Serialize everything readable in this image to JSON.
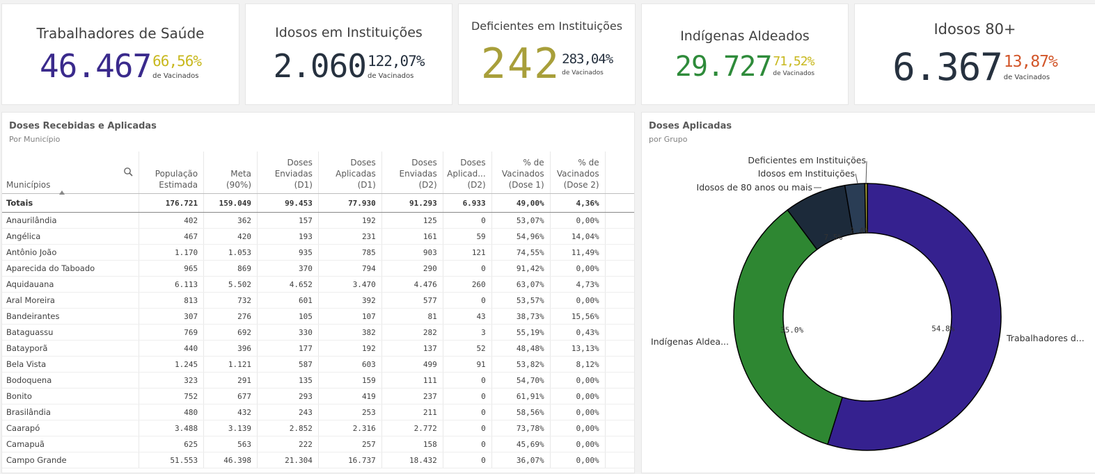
{
  "kpis": [
    {
      "title": "Trabalhadores de Saúde",
      "value": "46.467",
      "pct": "66,56%",
      "sub": "de Vacinados",
      "value_color": "#3a2a8c",
      "pct_color": "#c8b81e"
    },
    {
      "title": "Idosos em Instituições",
      "value": "2.060",
      "pct": "122,07%",
      "sub": "de Vacinados",
      "value_color": "#26313f",
      "pct_color": "#26313f"
    },
    {
      "title": "Deficientes em Instituições",
      "value": "242",
      "pct": "283,04%",
      "sub": "de Vacinados",
      "value_color": "#a89f3a",
      "pct_color": "#26313f"
    },
    {
      "title": "Indígenas Aldeados",
      "value": "29.727",
      "pct": "71,52%",
      "sub": "de Vacinados",
      "value_color": "#2e8b3a",
      "pct_color": "#c8b81e"
    },
    {
      "title": "Idosos 80+",
      "value": "6.367",
      "pct": "13,87%",
      "sub": "de Vacinados",
      "value_color": "#26313f",
      "pct_color": "#d2562a"
    }
  ],
  "table_panel": {
    "title": "Doses Recebidas e Aplicadas",
    "subtitle": "Por Município",
    "columns": [
      [
        "Municípios"
      ],
      [
        "População",
        "Estimada"
      ],
      [
        "Meta",
        "(90%)"
      ],
      [
        "Doses",
        "Enviadas",
        "(D1)"
      ],
      [
        "Doses",
        "Aplicadas",
        "(D1)"
      ],
      [
        "Doses",
        "Enviadas",
        "(D2)"
      ],
      [
        "Doses",
        "Aplicad...",
        "(D2)"
      ],
      [
        "% de",
        "Vacinados",
        "(Dose 1)"
      ],
      [
        "% de",
        "Vacinados",
        "(Dose 2)"
      ]
    ],
    "totals": [
      "Totais",
      "176.721",
      "159.049",
      "99.453",
      "77.930",
      "91.293",
      "6.933",
      "49,00%",
      "4,36%"
    ],
    "rows": [
      [
        "Anaurilândia",
        "402",
        "362",
        "157",
        "192",
        "125",
        "0",
        "53,07%",
        "0,00%"
      ],
      [
        "Angélica",
        "467",
        "420",
        "193",
        "231",
        "161",
        "59",
        "54,96%",
        "14,04%"
      ],
      [
        "Antônio João",
        "1.170",
        "1.053",
        "935",
        "785",
        "903",
        "121",
        "74,55%",
        "11,49%"
      ],
      [
        "Aparecida do Taboado",
        "965",
        "869",
        "370",
        "794",
        "290",
        "0",
        "91,42%",
        "0,00%"
      ],
      [
        "Aquidauana",
        "6.113",
        "5.502",
        "4.652",
        "3.470",
        "4.476",
        "260",
        "63,07%",
        "4,73%"
      ],
      [
        "Aral Moreira",
        "813",
        "732",
        "601",
        "392",
        "577",
        "0",
        "53,57%",
        "0,00%"
      ],
      [
        "Bandeirantes",
        "307",
        "276",
        "105",
        "107",
        "81",
        "43",
        "38,73%",
        "15,56%"
      ],
      [
        "Bataguassu",
        "769",
        "692",
        "330",
        "382",
        "282",
        "3",
        "55,19%",
        "0,43%"
      ],
      [
        "Batayporã",
        "440",
        "396",
        "177",
        "192",
        "137",
        "52",
        "48,48%",
        "13,13%"
      ],
      [
        "Bela Vista",
        "1.245",
        "1.121",
        "587",
        "603",
        "499",
        "91",
        "53,82%",
        "8,12%"
      ],
      [
        "Bodoquena",
        "323",
        "291",
        "135",
        "159",
        "111",
        "0",
        "54,70%",
        "0,00%"
      ],
      [
        "Bonito",
        "752",
        "677",
        "293",
        "419",
        "237",
        "0",
        "61,91%",
        "0,00%"
      ],
      [
        "Brasilândia",
        "480",
        "432",
        "243",
        "253",
        "211",
        "0",
        "58,56%",
        "0,00%"
      ],
      [
        "Caarapó",
        "3.488",
        "3.139",
        "2.852",
        "2.316",
        "2.772",
        "0",
        "73,78%",
        "0,00%"
      ],
      [
        "Camapuã",
        "625",
        "563",
        "222",
        "257",
        "158",
        "0",
        "45,69%",
        "0,00%"
      ],
      [
        "Campo Grande",
        "51.553",
        "46.398",
        "21.304",
        "16.737",
        "18.432",
        "0",
        "36,07%",
        "0,00%"
      ]
    ]
  },
  "chart_panel": {
    "title": "Doses Aplicadas",
    "subtitle": "por Grupo"
  },
  "chart_data": {
    "type": "pie",
    "donut": true,
    "slices": [
      {
        "label": "Trabalhadores d...",
        "value": 54.8,
        "pct_label": "54.8%",
        "color": "#35218f"
      },
      {
        "label": "Indígenas Aldea...",
        "value": 35.0,
        "pct_label": "35.0%",
        "color": "#2e8732"
      },
      {
        "label": "Idosos de 80 anos ou mais",
        "value": 7.5,
        "pct_label": "7.5%",
        "color": "#1c2a3a"
      },
      {
        "label": "Idosos em Instituições",
        "value": 2.4,
        "pct_label": "2.4%",
        "color": "#2a3d55"
      },
      {
        "label": "Deficientes em Instituições",
        "value": 0.3,
        "pct_label": "",
        "color": "#a89f3a"
      }
    ]
  }
}
